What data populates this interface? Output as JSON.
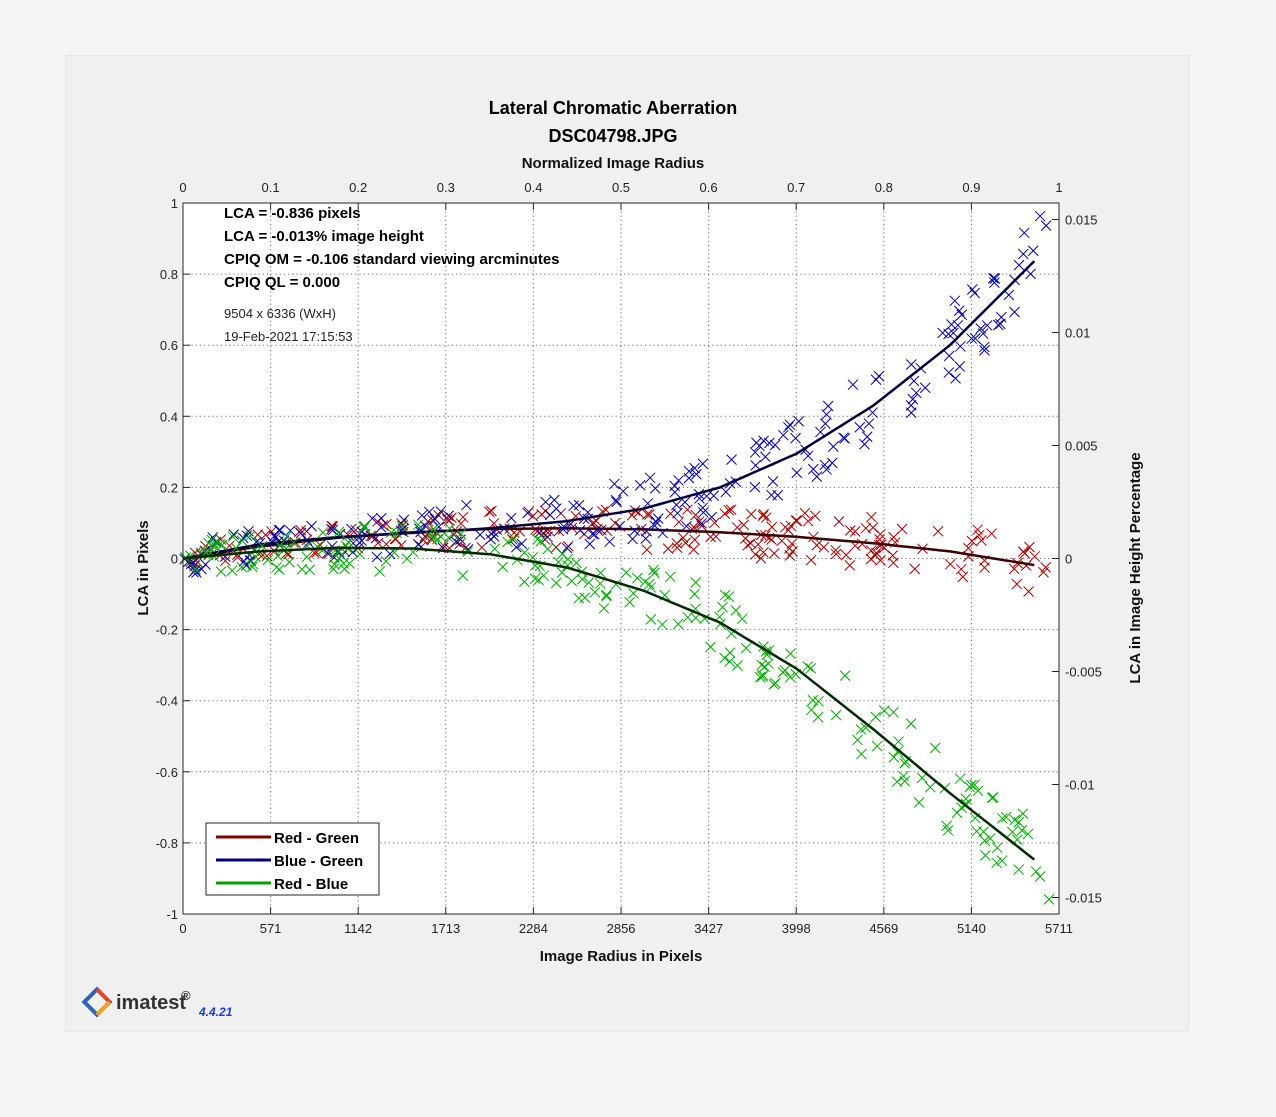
{
  "chart_data": {
    "type": "scatter",
    "title": "Lateral Chromatic Aberration",
    "subtitle": "DSC04798.JPG",
    "xlabel": "Image Radius in Pixels",
    "x2label": "Normalized Image Radius",
    "ylabel": "LCA in Pixels",
    "y2label": "LCA in Image Height Percentage",
    "xlim": [
      0,
      5711
    ],
    "x2lim": [
      0,
      1
    ],
    "ylim": [
      -1,
      1
    ],
    "y2lim": [
      -0.01573,
      0.01573
    ],
    "xticks": [
      "0",
      "571",
      "1142",
      "1713",
      "2284",
      "2856",
      "3427",
      "3998",
      "4569",
      "5140",
      "5711"
    ],
    "x2ticks": [
      "0",
      "0.1",
      "0.2",
      "0.3",
      "0.4",
      "0.5",
      "0.6",
      "0.7",
      "0.8",
      "0.9",
      "1"
    ],
    "yticks": [
      "1",
      "0.8",
      "0.6",
      "0.4",
      "0.2",
      "0",
      "-0.2",
      "-0.4",
      "-0.6",
      "-0.8",
      "-1"
    ],
    "y2ticks": [
      "0.015",
      "0.01",
      "0.005",
      "0",
      "-0.005",
      "-0.01",
      "-0.015"
    ],
    "grid": true,
    "legend_position": "bottom-left",
    "annotations": {
      "lca_pixels": "LCA = -0.836 pixels",
      "lca_percent": "LCA = -0.013% image height",
      "cpiq_om": "CPIQ OM = -0.106 standard viewing arcminutes",
      "cpiq_ql": "CPIQ QL = 0.000",
      "image_size": "9504 x 6336 (WxH)",
      "timestamp": "19-Feb-2021 17:15:53"
    },
    "series": [
      {
        "name": "Red - Green",
        "color": "#aa0000",
        "fit_x": [
          0,
          500,
          1000,
          1500,
          2000,
          2500,
          3000,
          3500,
          4000,
          4500,
          5000,
          5500
        ],
        "fit_y": [
          0,
          0.034,
          0.058,
          0.074,
          0.083,
          0.085,
          0.082,
          0.074,
          0.061,
          0.043,
          0.02,
          -0.015
        ],
        "scatter_x_range": [
          0,
          5650
        ],
        "scatter_y_spread": 0.035
      },
      {
        "name": "Blue - Green",
        "color": "#0000aa",
        "fit_x": [
          0,
          500,
          1000,
          1500,
          2000,
          2500,
          3000,
          3500,
          4000,
          4500,
          5000,
          5500
        ],
        "fit_y": [
          0,
          0.04,
          0.06,
          0.072,
          0.085,
          0.105,
          0.14,
          0.2,
          0.295,
          0.43,
          0.6,
          0.815
        ],
        "scatter_x_range": [
          0,
          5650
        ],
        "scatter_y_spread": 0.05
      },
      {
        "name": "Red - Blue",
        "color": "#00aa00",
        "fit_x": [
          0,
          500,
          1000,
          1500,
          2000,
          2500,
          3000,
          3500,
          4000,
          4500,
          5000,
          5500
        ],
        "fit_y": [
          0,
          0.02,
          0.03,
          0.028,
          0.012,
          -0.025,
          -0.09,
          -0.18,
          -0.31,
          -0.48,
          -0.66,
          -0.83
        ],
        "scatter_x_range": [
          0,
          5650
        ],
        "scatter_y_spread": 0.05
      }
    ]
  },
  "branding": {
    "logo_text": "imatest",
    "trademark": "®",
    "version": "4.4.21"
  }
}
